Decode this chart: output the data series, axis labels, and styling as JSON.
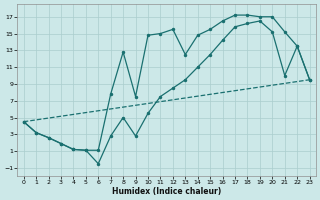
{
  "xlabel": "Humidex (Indice chaleur)",
  "bg_color": "#cce8e8",
  "grid_color": "#aacece",
  "line_color": "#1a7070",
  "xlim": [
    -0.5,
    23.5
  ],
  "ylim": [
    -2.0,
    18.5
  ],
  "xticks": [
    0,
    1,
    2,
    3,
    4,
    5,
    6,
    7,
    8,
    9,
    10,
    11,
    12,
    13,
    14,
    15,
    16,
    17,
    18,
    19,
    20,
    21,
    22,
    23
  ],
  "yticks": [
    -1,
    1,
    3,
    5,
    7,
    9,
    11,
    13,
    15,
    17
  ],
  "line1_x": [
    0,
    1,
    2,
    3,
    4,
    5,
    6,
    7,
    8,
    9,
    10,
    11,
    12,
    13,
    14,
    15,
    16,
    17,
    18,
    19,
    20,
    21,
    22,
    23
  ],
  "line1_y": [
    4.5,
    3.2,
    2.6,
    1.9,
    1.2,
    1.1,
    1.1,
    7.8,
    12.8,
    7.5,
    14.8,
    15.0,
    15.5,
    12.5,
    14.8,
    15.5,
    16.5,
    17.2,
    17.2,
    17.0,
    17.0,
    15.2,
    13.5,
    9.5
  ],
  "line2_x": [
    0,
    1,
    2,
    3,
    4,
    5,
    6,
    7,
    8,
    9,
    10,
    11,
    12,
    13,
    14,
    15,
    16,
    17,
    18,
    19,
    20,
    21,
    22,
    23
  ],
  "line2_y": [
    4.5,
    3.2,
    2.6,
    1.9,
    1.2,
    1.1,
    -0.5,
    2.8,
    5.0,
    2.8,
    5.5,
    7.5,
    8.5,
    9.5,
    11.0,
    12.5,
    14.2,
    15.8,
    16.2,
    16.5,
    15.2,
    10.0,
    13.5,
    9.5
  ],
  "line3_x": [
    0,
    23
  ],
  "line3_y": [
    4.5,
    9.5
  ],
  "marker_size": 2.5,
  "linewidth": 0.9
}
